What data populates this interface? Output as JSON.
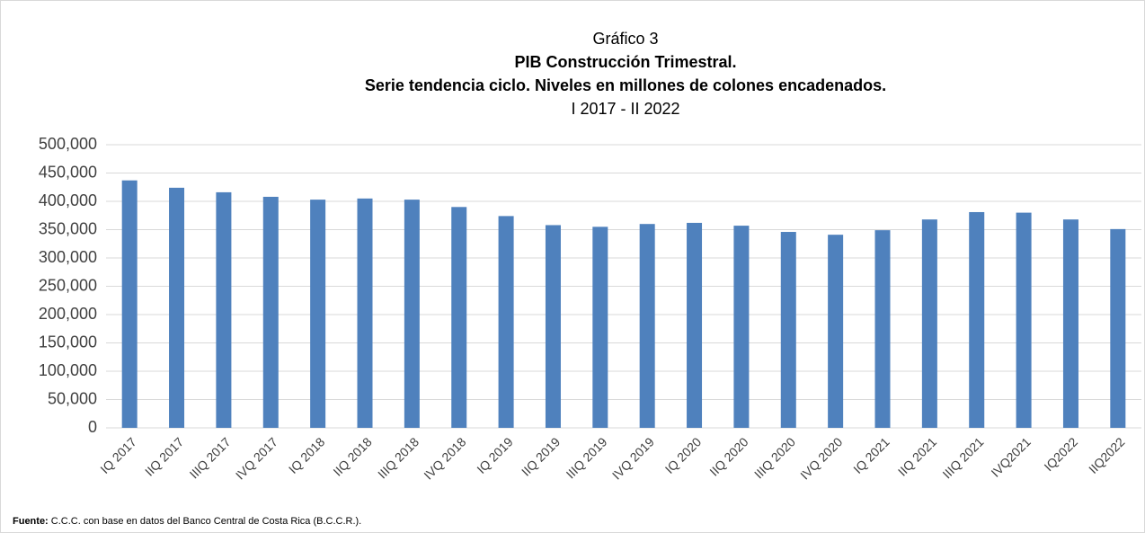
{
  "chart_data": {
    "type": "bar",
    "title": "Gráfico 3",
    "subtitle_bold_1": "PIB Construcción Trimestral.",
    "subtitle_bold_2": "Serie tendencia ciclo. Niveles en millones de colones encadenados.",
    "subtitle": "I 2017 - II 2022",
    "categories": [
      "IQ 2017",
      "IIQ 2017",
      "IIIQ 2017",
      "IVQ 2017",
      "IQ 2018",
      "IIQ 2018",
      "IIIQ 2018",
      "IVQ 2018",
      "IQ 2019",
      "IIQ 2019",
      "IIIQ 2019",
      "IVQ 2019",
      "IQ 2020",
      "IIQ 2020",
      "IIIQ 2020",
      "IVQ 2020",
      "IQ 2021",
      "IIQ 2021",
      "IIIQ 2021",
      "IVQ2021",
      "IQ2022",
      "IIQ2022"
    ],
    "values": [
      437000,
      424000,
      416000,
      408000,
      403000,
      405000,
      403000,
      390000,
      374000,
      358000,
      355000,
      360000,
      362000,
      357000,
      346000,
      341000,
      349000,
      368000,
      381000,
      380000,
      368000,
      351000
    ],
    "color": "#4f81bd",
    "ylim": [
      0,
      500000
    ],
    "yticks": [
      0,
      {
        "value": 50000,
        "label": "50,000"
      },
      {
        "value": 100000,
        "label": "100,000"
      },
      {
        "value": 150000,
        "label": "150,000"
      },
      {
        "value": 200000,
        "label": "200,000"
      },
      {
        "value": 250000,
        "label": "250,000"
      },
      {
        "value": 300000,
        "label": "300,000"
      },
      {
        "value": 350000,
        "label": "350,000"
      },
      {
        "value": 400000,
        "label": "400,000"
      },
      {
        "value": 450000,
        "label": "450,000"
      },
      {
        "value": 500000,
        "label": "500,000"
      }
    ],
    "grid": true,
    "source_label": "Fuente:",
    "source_text": "C.C.C. con base en datos del Banco Central de Costa Rica (B.C.C.R.)."
  }
}
